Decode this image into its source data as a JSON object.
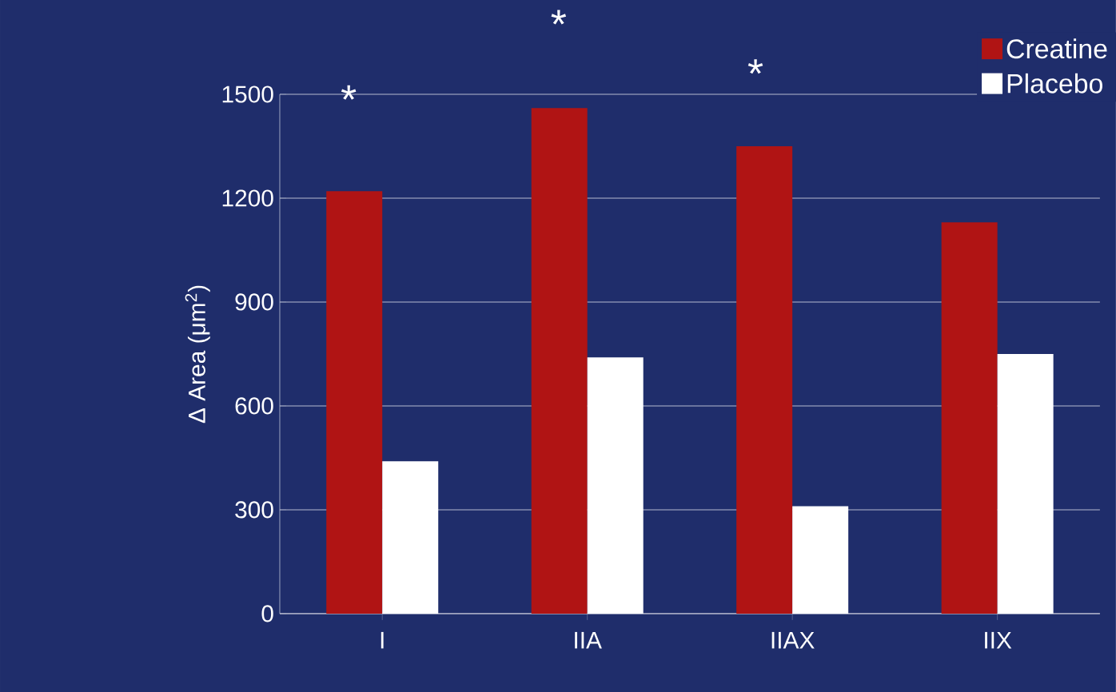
{
  "chart_data": {
    "type": "bar",
    "ylabel": "Δ Area (μm$^{2}$)",
    "categories": [
      "I",
      "IIA",
      "IIAX",
      "IIX"
    ],
    "series": [
      {
        "name": "Creatine",
        "color": "#b01414",
        "values": [
          1220,
          1460,
          1350,
          1130
        ]
      },
      {
        "name": "Placebo",
        "color": "#ffffff",
        "values": [
          440,
          740,
          310,
          750
        ]
      }
    ],
    "ylim": [
      0,
      1500
    ],
    "yticks": [
      0,
      300,
      600,
      900,
      1200,
      1500
    ],
    "grid": "y",
    "legend": "top right",
    "annotations": [
      "*",
      "*",
      "*"
    ]
  }
}
